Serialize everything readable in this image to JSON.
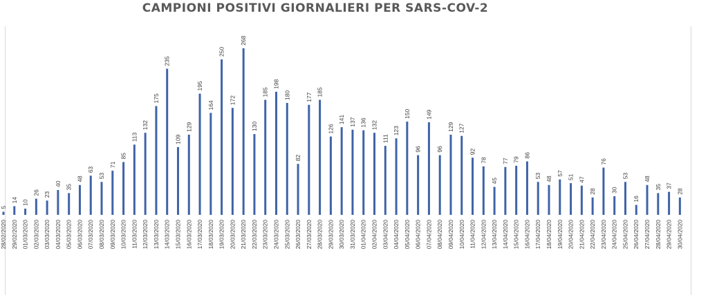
{
  "chart_data": {
    "type": "bar",
    "title": "CAMPIONI POSITIVI GIORNALIERI PER SARS-COV-2",
    "xlabel": "",
    "ylabel": "",
    "ylim": [
      0,
      280
    ],
    "grid": false,
    "legend": "none",
    "bar_color": "#3f63a8",
    "label_color": "#404040",
    "categories": [
      "28/02/2020",
      "29/02/2020",
      "01/03/2020",
      "02/03/2020",
      "03/03/2020",
      "04/03/2020",
      "05/03/2020",
      "06/03/2020",
      "07/03/2020",
      "08/03/2020",
      "09/03/2020",
      "10/03/2020",
      "11/03/2020",
      "12/03/2020",
      "13/03/2020",
      "14/03/2020",
      "15/03/2020",
      "16/03/2020",
      "17/03/2020",
      "18/03/2020",
      "19/03/2020",
      "20/03/2020",
      "21/03/2020",
      "22/03/2020",
      "23/03/2020",
      "24/03/2020",
      "25/03/2020",
      "26/03/2020",
      "27/03/2020",
      "28/03/2020",
      "29/03/2020",
      "30/03/2020",
      "31/03/2020",
      "01/04/2020",
      "02/04/2020",
      "03/04/2020",
      "04/04/2020",
      "05/04/2020",
      "06/04/2020",
      "07/04/2020",
      "08/04/2020",
      "09/04/2020",
      "10/04/2020",
      "11/04/2020",
      "12/04/2020",
      "13/04/2020",
      "14/04/2020",
      "15/04/2020",
      "16/04/2020",
      "17/04/2020",
      "18/04/2020",
      "19/04/2020",
      "20/04/2020",
      "21/04/2020",
      "22/04/2020",
      "23/04/2020",
      "24/04/2020",
      "25/04/2020",
      "26/04/2020",
      "27/04/2020",
      "28/04/2020",
      "29/04/2020",
      "30/04/2020"
    ],
    "values": [
      5,
      14,
      10,
      26,
      23,
      40,
      35,
      48,
      63,
      53,
      71,
      85,
      113,
      132,
      175,
      235,
      109,
      129,
      195,
      164,
      250,
      172,
      268,
      130,
      185,
      198,
      180,
      82,
      177,
      185,
      126,
      141,
      137,
      136,
      132,
      111,
      123,
      150,
      96,
      149,
      96,
      129,
      127,
      92,
      78,
      45,
      77,
      79,
      86,
      53,
      48,
      57,
      51,
      47,
      28,
      76,
      30,
      53,
      16,
      48,
      35,
      37,
      28
    ]
  }
}
